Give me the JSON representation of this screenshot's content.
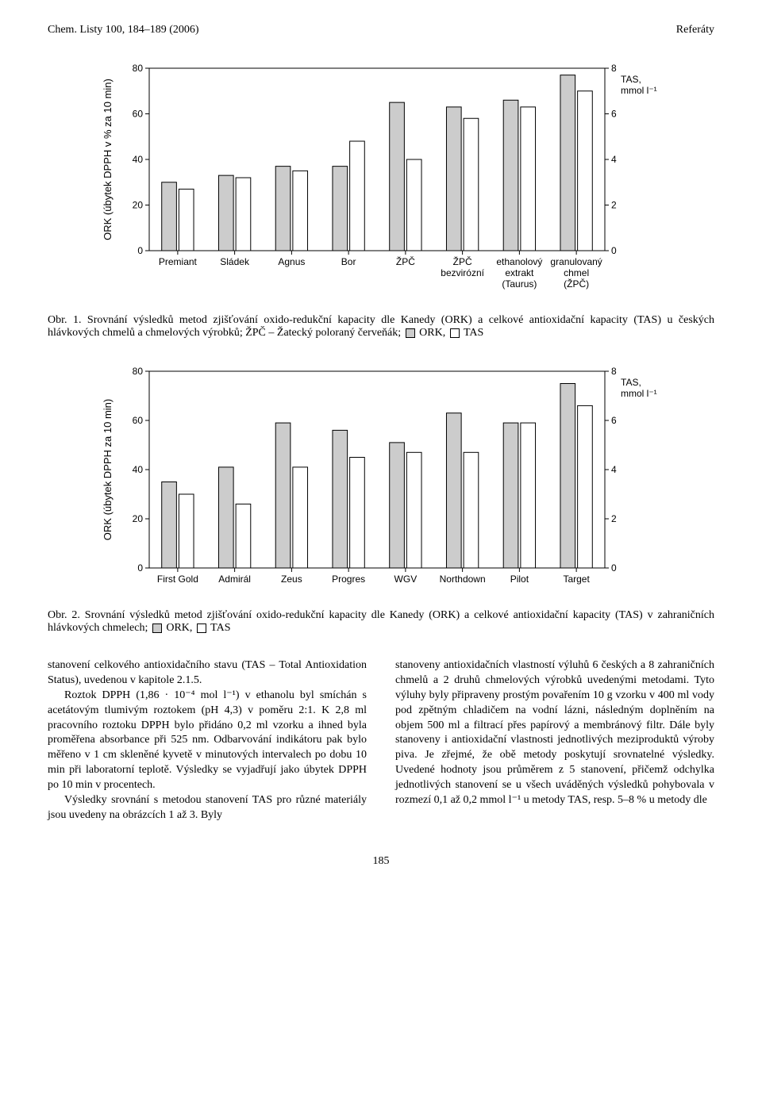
{
  "header": {
    "left": "Chem. Listy 100, 184–189 (2006)",
    "right": "Referáty"
  },
  "chart1": {
    "type": "bar",
    "ylabel": "ORK (úbytek DPPH v % za 10 min)",
    "y2_label": "TAS,\nmmol l⁻¹",
    "left_ticks": [
      0,
      20,
      40,
      60,
      80
    ],
    "right_ticks": [
      0,
      2,
      4,
      6,
      8
    ],
    "categories": [
      "Premiant",
      "Sládek",
      "Agnus",
      "Bor",
      "ŽPČ",
      "ŽPČ\nbezvirózní",
      "ethanolový\nextrakt\n(Taurus)",
      "granulovaný\nchmel\n(ŽPČ)"
    ],
    "ork_values": [
      30,
      33,
      37,
      37,
      65,
      63,
      66,
      77
    ],
    "tas_values": [
      27,
      32,
      35,
      48,
      40,
      58,
      63,
      70
    ],
    "colors": {
      "ork": "#cccccc",
      "tas": "#ffffff",
      "axis": "#000000"
    },
    "bar_width": 0.26,
    "plot_bg": "#ffffff",
    "font_size_axis": 12,
    "font_size_ylabel": 13
  },
  "caption1": {
    "text_a": "Obr. 1. Srovnání výsledků metod zjišťování oxido-redukční kapacity dle Kanedy (ORK) a celkové antioxidační kapacity (TAS) u českých hlávkových chmelů a chmelových výrobků; ŽPČ – Žatecký poloraný červeňák; ",
    "leg1": "ORK, ",
    "leg2": "TAS"
  },
  "chart2": {
    "type": "bar",
    "ylabel": "ORK (úbytek DPPH za 10 min)",
    "y2_label": "TAS,\nmmol l⁻¹",
    "left_ticks": [
      0,
      20,
      40,
      60,
      80
    ],
    "right_ticks": [
      0,
      2,
      4,
      6,
      8
    ],
    "categories": [
      "First Gold",
      "Admirál",
      "Zeus",
      "Progres",
      "WGV",
      "Northdown",
      "Pilot",
      "Target"
    ],
    "ork_values": [
      35,
      41,
      59,
      56,
      51,
      63,
      59,
      75
    ],
    "tas_values": [
      30,
      26,
      41,
      45,
      47,
      47,
      59,
      66
    ],
    "colors": {
      "ork": "#cccccc",
      "tas": "#ffffff",
      "axis": "#000000"
    },
    "bar_width": 0.26,
    "plot_bg": "#ffffff",
    "font_size_axis": 12,
    "font_size_ylabel": 13
  },
  "caption2": {
    "text_a": "Obr. 2. Srovnání výsledků metod zjišťování oxido-redukční kapacity dle Kanedy (ORK) a celkové antioxidační kapacity (TAS) v zahraničních hlávkových chmelech; ",
    "leg1": "ORK, ",
    "leg2": "TAS"
  },
  "body": {
    "left1": "stanovení celkového antioxidačního stavu (TAS – Total Antioxidation Status), uvedenou v kapitole 2.1.5.",
    "left2": "Roztok DPPH (1,86 · 10⁻⁴ mol l⁻¹) v ethanolu byl smíchán s acetátovým tlumivým roztokem (pH 4,3) v poměru 2:1. K 2,8 ml pracovního roztoku DPPH bylo přidáno 0,2 ml vzorku a ihned byla proměřena absorbance při 525 nm. Odbarvování indikátoru pak bylo měřeno v 1 cm skleněné kyvetě v minutových intervalech po dobu 10 min při laboratorní teplotě. Výsledky se vyjadřují jako úbytek DPPH po 10 min v procentech.",
    "left3": "Výsledky srovnání s metodou stanovení TAS pro různé materiály jsou uvedeny na obrázcích 1 až 3. Byly",
    "right1": "stanoveny antioxidačních vlastností výluhů 6 českých a 8 zahraničních chmelů a 2 druhů chmelových výrobků uvedenými metodami. Tyto výluhy byly připraveny prostým povařením 10 g vzorku v 400 ml vody pod zpětným chladičem na vodní lázni, následným doplněním na objem 500 ml a filtrací přes papírový a membránový filtr. Dále byly stanoveny i antioxidační vlastnosti jednotlivých meziproduktů výroby piva. Je zřejmé, že obě metody poskytují srovnatelné výsledky. Uvedené hodnoty jsou průměrem z 5 stanovení, přičemž odchylka jednotlivých stanovení se u všech uváděných výsledků pohybovala v rozmezí 0,1 až 0,2 mmol l⁻¹ u metody TAS, resp. 5–8 % u metody dle"
  },
  "page_number": "185"
}
